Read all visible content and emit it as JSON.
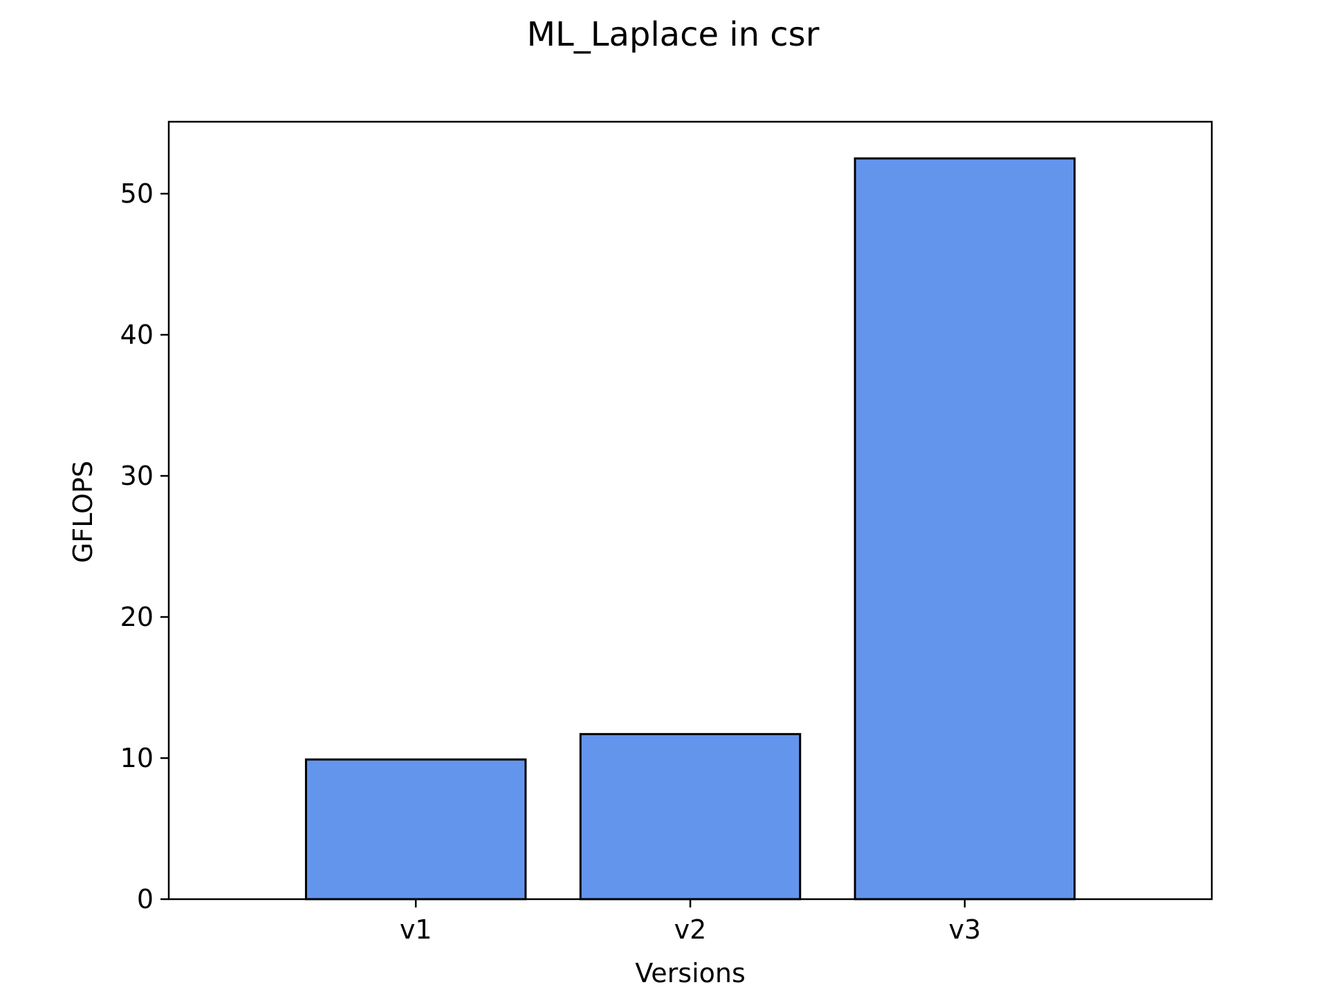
{
  "chart_data": {
    "type": "bar",
    "title": "ML_Laplace in csr",
    "xlabel": "Versions",
    "ylabel": "GFLOPS",
    "categories": [
      "v1",
      "v2",
      "v3"
    ],
    "values": [
      9.9,
      11.7,
      52.5
    ],
    "ylim": [
      0,
      55.1
    ],
    "yticks": [
      0,
      10,
      20,
      30,
      40,
      50
    ],
    "grid": false,
    "legend": "none",
    "colors": {
      "bar_fill": "#6495ED",
      "bar_edge": "#000000",
      "axes": "#000000",
      "background": "#ffffff"
    }
  }
}
